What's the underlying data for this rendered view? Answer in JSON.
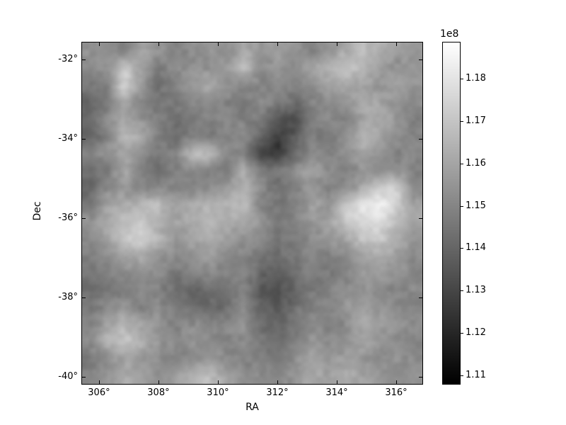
{
  "figure": {
    "background_color": "#ffffff",
    "foreground_color": "#000000",
    "colorbar_top_color": "#ffffff",
    "colorbar_bottom_color": "#000000"
  },
  "chart_data": {
    "type": "heatmap",
    "title": "",
    "xlabel": "RA",
    "ylabel": "Dec",
    "x_range": [
      305.43,
      316.88
    ],
    "y_range": [
      -40.18,
      -31.57
    ],
    "x_tick_values": [
      306,
      308,
      310,
      312,
      314,
      316
    ],
    "x_tick_labels": [
      "306°",
      "308°",
      "310°",
      "312°",
      "314°",
      "316°"
    ],
    "y_tick_values": [
      -32,
      -34,
      -36,
      -38,
      -40
    ],
    "y_tick_labels": [
      "-32°",
      "-34°",
      "-36°",
      "-38°",
      "-40°"
    ],
    "grid": "off",
    "colormap": "gray",
    "colorbar": {
      "offset_label": "1e8",
      "vmin": 1.108,
      "vmax": 1.1885,
      "units_scale": 100000000.0,
      "tick_values": [
        1.18,
        1.17,
        1.16,
        1.15,
        1.14,
        1.13,
        1.12,
        1.11
      ],
      "tick_labels": [
        "1.18",
        "1.17",
        "1.16",
        "1.15",
        "1.14",
        "1.13",
        "1.12",
        "1.11"
      ],
      "position": "right"
    },
    "grid_rows": 20,
    "grid_cols": 20,
    "values_units": "1e8",
    "values": [
      [
        1.155,
        1.152,
        1.147,
        1.16,
        1.155,
        1.149,
        1.152,
        1.155,
        1.152,
        1.162,
        1.155,
        1.159,
        1.155,
        1.149,
        1.155,
        1.162,
        1.168,
        1.162,
        1.159,
        1.155
      ],
      [
        1.152,
        1.155,
        1.171,
        1.159,
        1.146,
        1.152,
        1.155,
        1.154,
        1.155,
        1.168,
        1.152,
        1.155,
        1.152,
        1.159,
        1.165,
        1.171,
        1.165,
        1.159,
        1.152,
        1.155
      ],
      [
        1.146,
        1.149,
        1.177,
        1.155,
        1.143,
        1.149,
        1.155,
        1.162,
        1.155,
        1.152,
        1.149,
        1.152,
        1.149,
        1.152,
        1.159,
        1.162,
        1.159,
        1.155,
        1.159,
        1.155
      ],
      [
        1.14,
        1.146,
        1.159,
        1.149,
        1.146,
        1.146,
        1.152,
        1.152,
        1.149,
        1.146,
        1.152,
        1.149,
        1.143,
        1.149,
        1.152,
        1.155,
        1.162,
        1.159,
        1.155,
        1.152
      ],
      [
        1.143,
        1.152,
        1.162,
        1.155,
        1.149,
        1.143,
        1.146,
        1.149,
        1.152,
        1.149,
        1.146,
        1.136,
        1.13,
        1.146,
        1.152,
        1.149,
        1.159,
        1.162,
        1.155,
        1.149
      ],
      [
        1.14,
        1.149,
        1.165,
        1.162,
        1.149,
        1.143,
        1.149,
        1.146,
        1.149,
        1.152,
        1.143,
        1.127,
        1.136,
        1.149,
        1.146,
        1.152,
        1.165,
        1.159,
        1.152,
        1.149
      ],
      [
        1.149,
        1.155,
        1.159,
        1.152,
        1.146,
        1.149,
        1.168,
        1.168,
        1.152,
        1.149,
        1.127,
        1.124,
        1.14,
        1.152,
        1.149,
        1.155,
        1.159,
        1.155,
        1.149,
        1.152
      ],
      [
        1.143,
        1.146,
        1.162,
        1.149,
        1.143,
        1.149,
        1.152,
        1.149,
        1.146,
        1.162,
        1.149,
        1.146,
        1.155,
        1.159,
        1.152,
        1.149,
        1.155,
        1.152,
        1.155,
        1.149
      ],
      [
        1.14,
        1.152,
        1.155,
        1.149,
        1.152,
        1.149,
        1.149,
        1.152,
        1.155,
        1.165,
        1.152,
        1.143,
        1.149,
        1.155,
        1.149,
        1.152,
        1.162,
        1.171,
        1.174,
        1.152
      ],
      [
        1.146,
        1.159,
        1.162,
        1.165,
        1.168,
        1.159,
        1.162,
        1.165,
        1.165,
        1.168,
        1.149,
        1.146,
        1.149,
        1.159,
        1.155,
        1.171,
        1.181,
        1.184,
        1.174,
        1.159
      ],
      [
        1.155,
        1.162,
        1.168,
        1.171,
        1.162,
        1.159,
        1.162,
        1.168,
        1.162,
        1.159,
        1.155,
        1.146,
        1.149,
        1.155,
        1.159,
        1.171,
        1.177,
        1.177,
        1.168,
        1.159
      ],
      [
        1.152,
        1.159,
        1.171,
        1.174,
        1.165,
        1.155,
        1.159,
        1.162,
        1.159,
        1.155,
        1.152,
        1.146,
        1.146,
        1.152,
        1.155,
        1.159,
        1.171,
        1.171,
        1.162,
        1.155
      ],
      [
        1.149,
        1.152,
        1.159,
        1.162,
        1.155,
        1.152,
        1.155,
        1.159,
        1.152,
        1.149,
        1.146,
        1.143,
        1.146,
        1.152,
        1.149,
        1.152,
        1.159,
        1.162,
        1.159,
        1.152
      ],
      [
        1.146,
        1.149,
        1.152,
        1.155,
        1.152,
        1.146,
        1.149,
        1.152,
        1.149,
        1.152,
        1.14,
        1.136,
        1.143,
        1.149,
        1.146,
        1.149,
        1.155,
        1.159,
        1.155,
        1.149
      ],
      [
        1.143,
        1.146,
        1.149,
        1.152,
        1.149,
        1.143,
        1.14,
        1.143,
        1.146,
        1.149,
        1.136,
        1.133,
        1.14,
        1.146,
        1.149,
        1.152,
        1.155,
        1.152,
        1.149,
        1.152
      ],
      [
        1.146,
        1.152,
        1.155,
        1.149,
        1.152,
        1.146,
        1.143,
        1.14,
        1.143,
        1.152,
        1.14,
        1.136,
        1.143,
        1.149,
        1.152,
        1.155,
        1.159,
        1.155,
        1.152,
        1.149
      ],
      [
        1.149,
        1.159,
        1.165,
        1.159,
        1.155,
        1.149,
        1.152,
        1.149,
        1.152,
        1.155,
        1.143,
        1.14,
        1.146,
        1.152,
        1.149,
        1.152,
        1.162,
        1.159,
        1.155,
        1.152
      ],
      [
        1.152,
        1.165,
        1.171,
        1.165,
        1.155,
        1.152,
        1.155,
        1.152,
        1.149,
        1.152,
        1.146,
        1.143,
        1.149,
        1.155,
        1.152,
        1.155,
        1.159,
        1.155,
        1.152,
        1.149
      ],
      [
        1.146,
        1.152,
        1.159,
        1.155,
        1.152,
        1.149,
        1.152,
        1.155,
        1.152,
        1.149,
        1.149,
        1.146,
        1.152,
        1.159,
        1.155,
        1.159,
        1.155,
        1.152,
        1.155,
        1.152
      ],
      [
        1.149,
        1.155,
        1.162,
        1.159,
        1.155,
        1.159,
        1.165,
        1.168,
        1.159,
        1.152,
        1.152,
        1.149,
        1.155,
        1.162,
        1.159,
        1.162,
        1.159,
        1.155,
        1.152,
        1.155
      ]
    ]
  }
}
